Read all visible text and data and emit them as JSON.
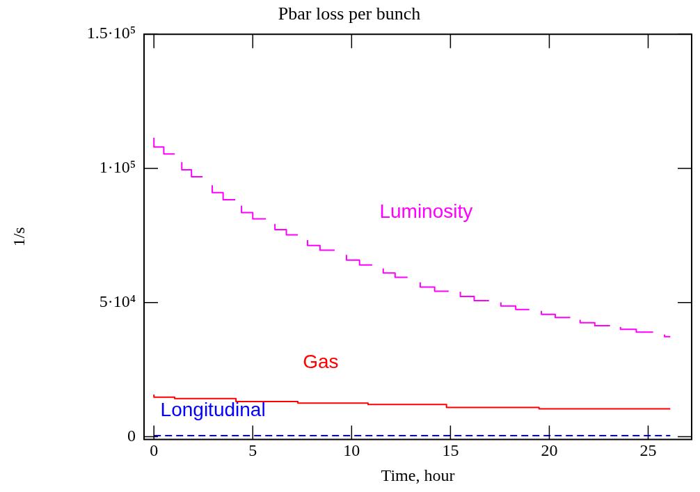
{
  "chart_data": {
    "type": "step",
    "title": "Pbar loss per bunch",
    "xlabel": "Time, hour",
    "ylabel": "1/s",
    "xlim": [
      -0.5,
      27.2
    ],
    "xticks": [
      0,
      5,
      10,
      15,
      20,
      25
    ],
    "ylim": [
      -1000,
      150000
    ],
    "yticks": [
      {
        "value": 0,
        "label": "0"
      },
      {
        "value": 50000,
        "label": "5·10⁴"
      },
      {
        "value": 100000,
        "label": "1·10⁵"
      },
      {
        "value": 150000,
        "label": "1.5·10⁵"
      }
    ],
    "grid": false,
    "legend": false,
    "marker": "none",
    "series": [
      {
        "name": "Luminosity",
        "color": "#ff00ff",
        "line_style": "solid",
        "x": [
          0,
          0.5,
          1.05,
          null,
          1.41,
          1.9,
          2.46,
          null,
          2.95,
          3.5,
          4.11,
          null,
          4.43,
          5.0,
          5.66,
          null,
          6.12,
          6.7,
          7.28,
          null,
          7.77,
          8.4,
          9.14,
          null,
          9.74,
          10.4,
          11.04,
          null,
          11.6,
          12.2,
          12.83,
          null,
          13.47,
          14.2,
          14.91,
          null,
          15.5,
          16.2,
          16.95,
          null,
          17.55,
          18.3,
          18.99,
          null,
          19.6,
          20.3,
          21.06,
          null,
          21.56,
          22.3,
          23.07,
          null,
          23.6,
          24.4,
          25.25,
          null,
          25.83,
          26.12
        ],
        "values": [
          111400,
          108000,
          105400,
          null,
          102300,
          99500,
          96900,
          null,
          93700,
          91000,
          88300,
          null,
          86100,
          83500,
          81200,
          null,
          79300,
          77200,
          75200,
          null,
          73300,
          71300,
          69500,
          null,
          67800,
          65800,
          64000,
          null,
          62700,
          61000,
          59400,
          null,
          57500,
          55800,
          54200,
          null,
          54000,
          52300,
          50700,
          null,
          50100,
          48700,
          47400,
          null,
          46900,
          45600,
          44400,
          null,
          43600,
          42500,
          41400,
          null,
          40900,
          40000,
          39000,
          null,
          38100,
          37300
        ]
      },
      {
        "name": "Gas",
        "color": "#ff0000",
        "line_style": "solid",
        "x": [
          0,
          1.05,
          4.15,
          7.28,
          10.83,
          14.8,
          19.48,
          24.9,
          26.12
        ],
        "values": [
          15700,
          14700,
          14200,
          13100,
          12500,
          12000,
          10900,
          10400,
          10400
        ]
      },
      {
        "name": "Longitudinal",
        "color": "#0000ff",
        "line_style": "dashed",
        "x": [
          0,
          26.12
        ],
        "values": [
          400,
          400
        ]
      }
    ]
  }
}
